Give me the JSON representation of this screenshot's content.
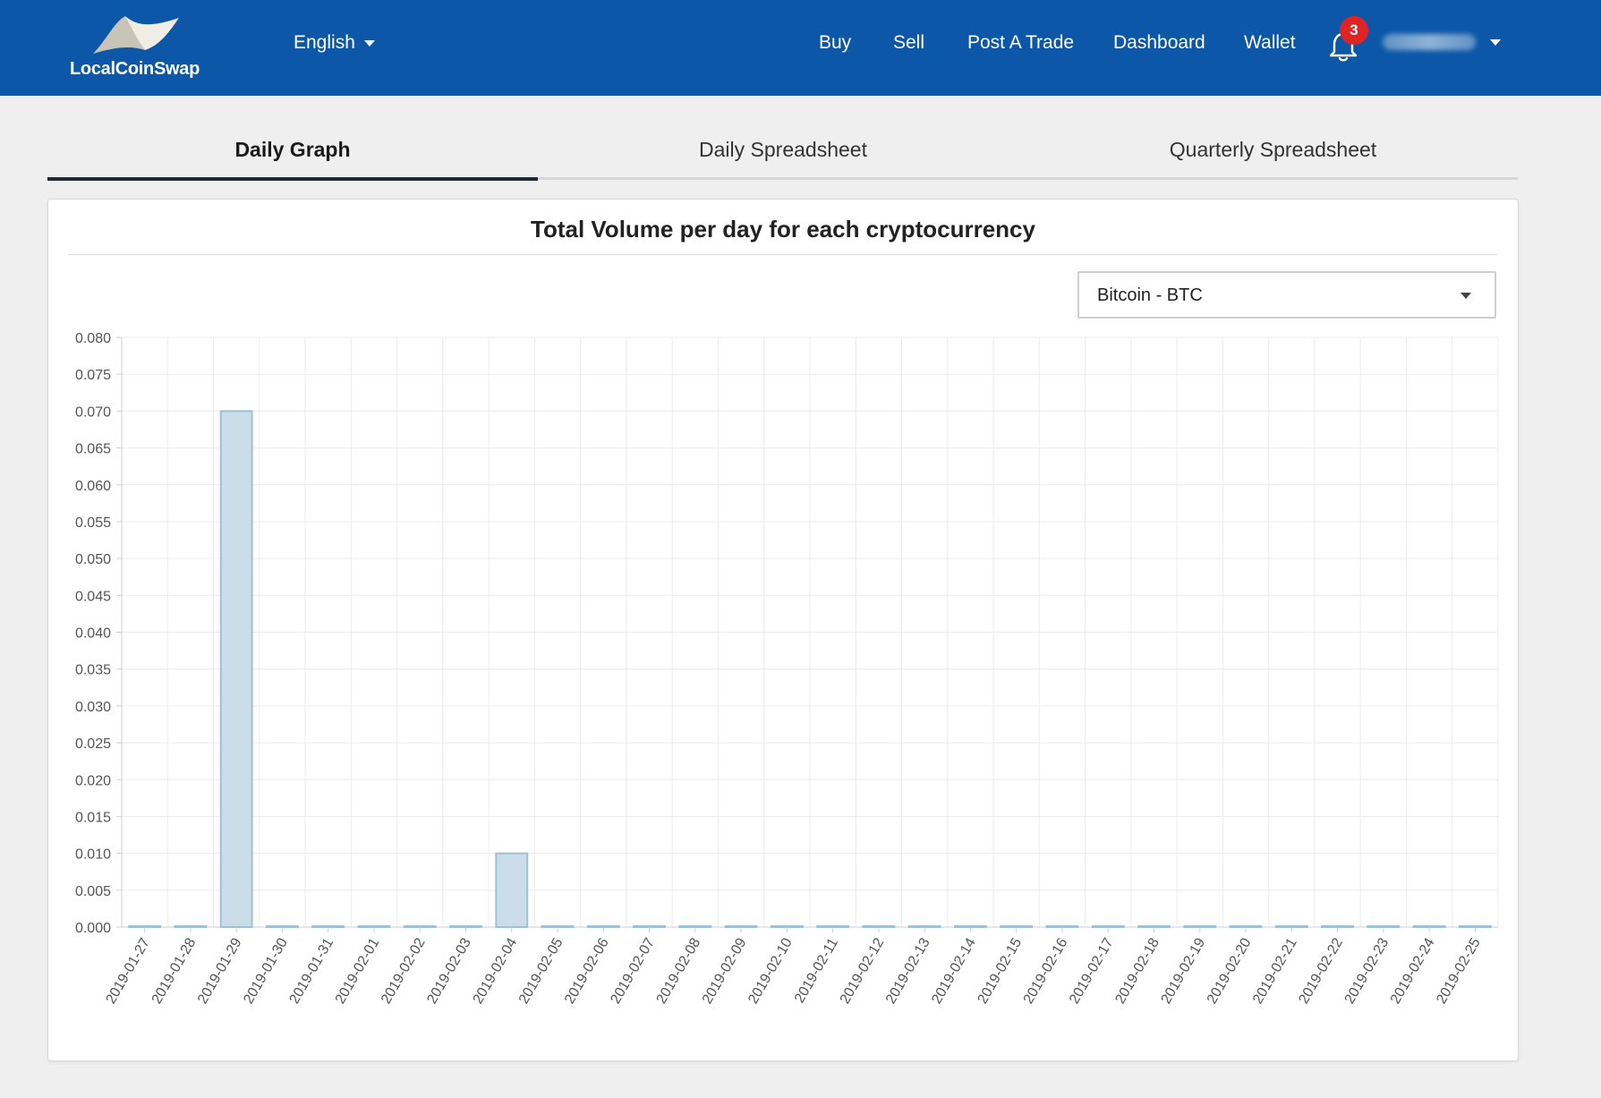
{
  "header": {
    "logo_text": "LocalCoinSwap",
    "language": "English",
    "nav": [
      "Buy",
      "Sell",
      "Post A Trade",
      "Dashboard",
      "Wallet"
    ],
    "notification_count": "3"
  },
  "tabs": [
    "Daily Graph",
    "Daily Spreadsheet",
    "Quarterly Spreadsheet"
  ],
  "active_tab": "Daily Graph",
  "card": {
    "title": "Total Volume per day for each cryptocurrency",
    "currency_select": "Bitcoin - BTC"
  },
  "colors": {
    "header_bg": "#0c57a8",
    "bar_fill": "#cadde8",
    "bar_stroke": "#9cc2d4",
    "badge": "#e02424"
  },
  "chart_data": {
    "type": "bar",
    "title": "",
    "xlabel": "",
    "ylabel": "",
    "ylim": [
      0,
      0.08
    ],
    "yticks": [
      "0.000",
      "0.005",
      "0.010",
      "0.015",
      "0.020",
      "0.025",
      "0.030",
      "0.035",
      "0.040",
      "0.045",
      "0.050",
      "0.055",
      "0.060",
      "0.065",
      "0.070",
      "0.075",
      "0.080"
    ],
    "grid": true,
    "categories": [
      "2019-01-27",
      "2019-01-28",
      "2019-01-29",
      "2019-01-30",
      "2019-01-31",
      "2019-02-01",
      "2019-02-02",
      "2019-02-03",
      "2019-02-04",
      "2019-02-05",
      "2019-02-06",
      "2019-02-07",
      "2019-02-08",
      "2019-02-09",
      "2019-02-10",
      "2019-02-11",
      "2019-02-12",
      "2019-02-13",
      "2019-02-14",
      "2019-02-15",
      "2019-02-16",
      "2019-02-17",
      "2019-02-18",
      "2019-02-19",
      "2019-02-20",
      "2019-02-21",
      "2019-02-22",
      "2019-02-23",
      "2019-02-24",
      "2019-02-25"
    ],
    "values": [
      0,
      0,
      0.07,
      0,
      0,
      0,
      0,
      0,
      0.01,
      0,
      0,
      0,
      0,
      0,
      0,
      0,
      0,
      0,
      0,
      0,
      0,
      0,
      0,
      0,
      0,
      0,
      0,
      0,
      0,
      0
    ]
  }
}
